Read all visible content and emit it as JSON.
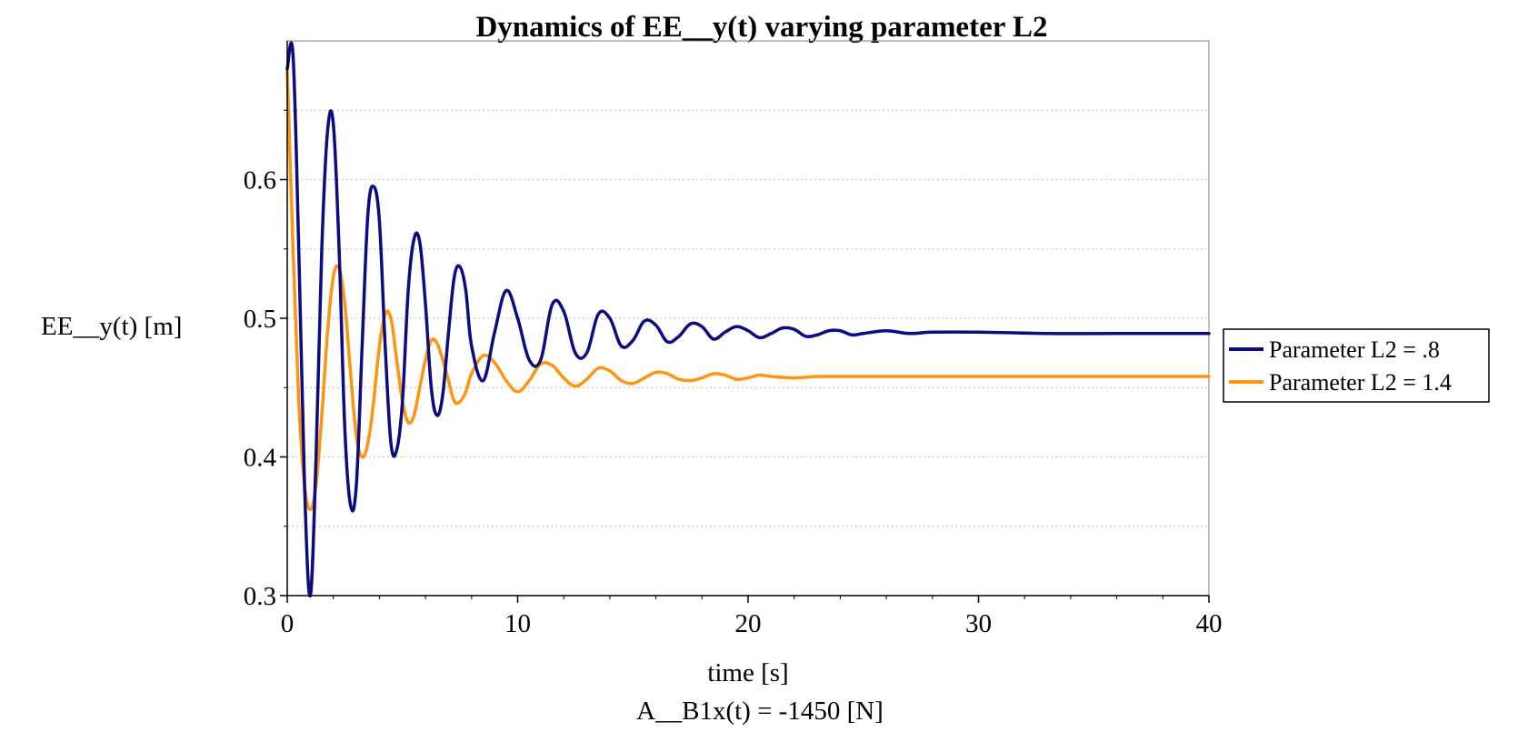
{
  "chart_data": {
    "type": "line",
    "title": "Dynamics of EE__y(t) varying parameter L2",
    "xlabel": "time [s]",
    "xlabel2": "A__B1x(t) = -1450 [N]",
    "ylabel": "EE__y(t) [m]",
    "xlim": [
      0,
      40
    ],
    "ylim": [
      0.3,
      0.7
    ],
    "xticks": [
      "0",
      "10",
      "20",
      "30",
      "40"
    ],
    "yticks": [
      "0.3",
      "0.4",
      "0.5",
      "0.6"
    ],
    "grid": "horizontal dotted",
    "legend_position": "right",
    "colors": {
      "series1": "#0b0b82",
      "series2": "#ff9410"
    },
    "series": [
      {
        "name": "Parameter L2 = .8",
        "x": [
          0,
          0.25,
          0.5,
          0.75,
          1.0,
          1.25,
          1.5,
          1.75,
          2.0,
          2.25,
          2.5,
          2.75,
          3.0,
          3.25,
          3.5,
          3.75,
          4.0,
          4.25,
          4.5,
          4.75,
          5.0,
          5.25,
          5.5,
          5.75,
          6.0,
          6.25,
          6.5,
          6.75,
          7.0,
          7.25,
          7.5,
          7.75,
          8.0,
          8.5,
          9.0,
          9.5,
          10.0,
          10.5,
          11.0,
          11.5,
          12.0,
          12.5,
          13.0,
          13.5,
          14.0,
          14.5,
          15.0,
          15.5,
          16.0,
          16.5,
          17.0,
          17.5,
          18.0,
          18.5,
          19.0,
          19.5,
          20.0,
          20.5,
          21.0,
          21.5,
          22.0,
          22.5,
          23.0,
          23.5,
          24.0,
          24.5,
          25.0,
          26.0,
          27.0,
          28.0,
          30.0,
          33.0,
          36.0,
          40.0
        ],
        "y": [
          0.68,
          0.69,
          0.55,
          0.38,
          0.3,
          0.4,
          0.55,
          0.635,
          0.64,
          0.55,
          0.42,
          0.365,
          0.38,
          0.48,
          0.575,
          0.595,
          0.57,
          0.48,
          0.41,
          0.405,
          0.44,
          0.52,
          0.557,
          0.555,
          0.51,
          0.45,
          0.43,
          0.445,
          0.49,
          0.53,
          0.537,
          0.52,
          0.48,
          0.455,
          0.49,
          0.52,
          0.5,
          0.47,
          0.47,
          0.51,
          0.505,
          0.475,
          0.475,
          0.503,
          0.5,
          0.48,
          0.484,
          0.498,
          0.495,
          0.483,
          0.487,
          0.496,
          0.494,
          0.485,
          0.49,
          0.494,
          0.491,
          0.486,
          0.489,
          0.493,
          0.492,
          0.487,
          0.488,
          0.491,
          0.491,
          0.488,
          0.489,
          0.491,
          0.489,
          0.49,
          0.49,
          0.489,
          0.489,
          0.489
        ]
      },
      {
        "name": "Parameter L2 = 1.4",
        "x": [
          0,
          0.25,
          0.5,
          0.75,
          1.0,
          1.25,
          1.5,
          1.75,
          2.0,
          2.25,
          2.5,
          2.75,
          3.0,
          3.25,
          3.5,
          3.75,
          4.0,
          4.25,
          4.5,
          4.75,
          5.0,
          5.25,
          5.5,
          5.75,
          6.0,
          6.25,
          6.5,
          6.75,
          7.0,
          7.25,
          7.5,
          7.75,
          8.0,
          8.5,
          9.0,
          9.5,
          10.0,
          10.5,
          11.0,
          11.5,
          12.0,
          12.5,
          13.0,
          13.5,
          14.0,
          14.5,
          15.0,
          15.5,
          16.0,
          16.5,
          17.0,
          17.5,
          18.0,
          18.5,
          19.0,
          19.5,
          20.0,
          20.5,
          21.0,
          22.0,
          23.0,
          24.0,
          25.0,
          26.0,
          27.0,
          28.0,
          30.0,
          33.0,
          36.0,
          40.0
        ],
        "y": [
          0.68,
          0.55,
          0.44,
          0.38,
          0.362,
          0.38,
          0.43,
          0.49,
          0.53,
          0.536,
          0.51,
          0.46,
          0.415,
          0.4,
          0.41,
          0.44,
          0.48,
          0.503,
          0.5,
          0.47,
          0.44,
          0.425,
          0.43,
          0.45,
          0.47,
          0.484,
          0.482,
          0.47,
          0.455,
          0.44,
          0.44,
          0.447,
          0.46,
          0.473,
          0.468,
          0.455,
          0.447,
          0.455,
          0.467,
          0.466,
          0.457,
          0.451,
          0.456,
          0.464,
          0.462,
          0.455,
          0.453,
          0.457,
          0.461,
          0.46,
          0.456,
          0.455,
          0.457,
          0.46,
          0.459,
          0.456,
          0.457,
          0.459,
          0.458,
          0.457,
          0.458,
          0.458,
          0.458,
          0.458,
          0.458,
          0.458,
          0.458,
          0.458,
          0.458,
          0.458
        ]
      }
    ]
  }
}
